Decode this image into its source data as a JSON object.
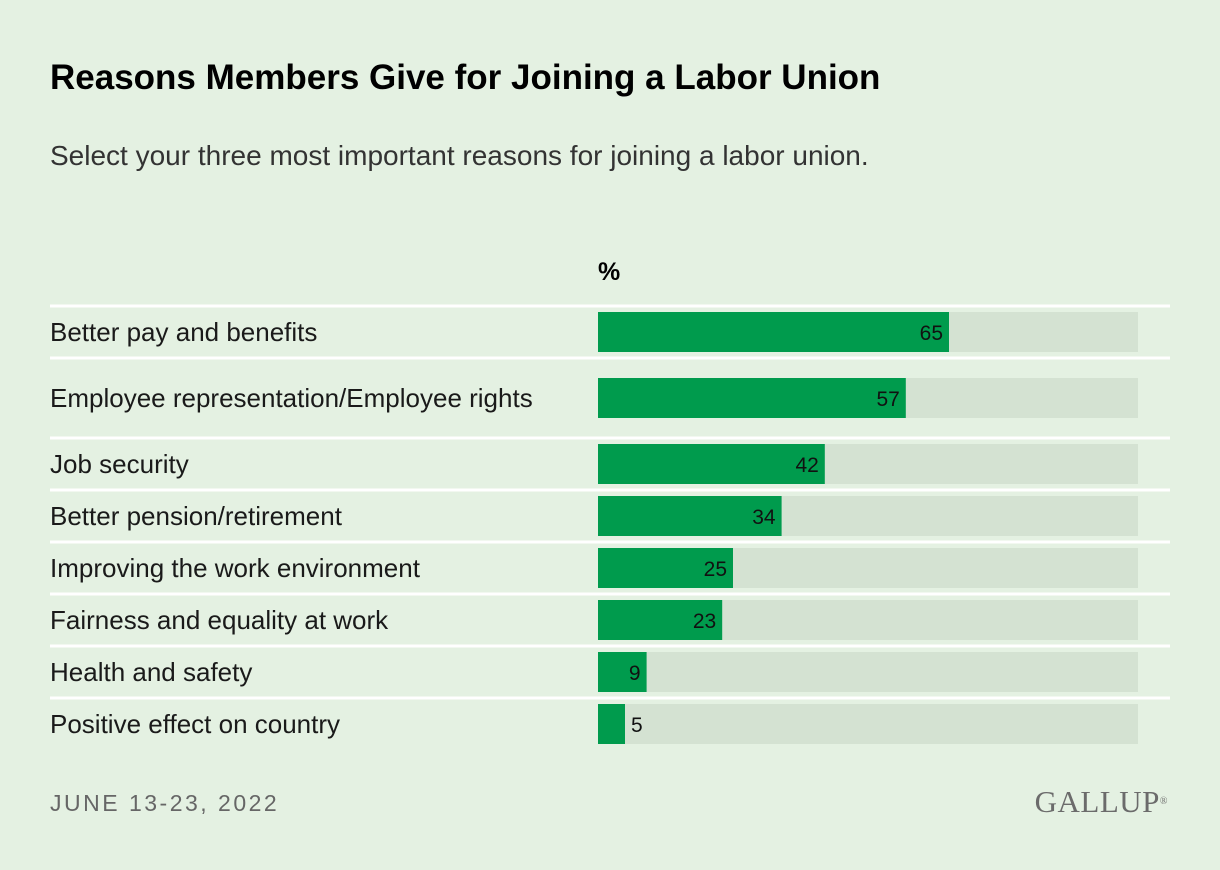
{
  "chart_data": {
    "type": "bar",
    "orientation": "horizontal",
    "title": "Reasons Members Give for Joining a Labor Union",
    "subtitle": "Select your three most important reasons for joining a labor union.",
    "unit_label": "%",
    "categories": [
      "Better pay and benefits",
      "Employee representation/Employee rights",
      "Job security",
      "Better pension/retirement",
      "Improving the work environment",
      "Fairness and equality at work",
      "Health and safety",
      "Positive effect on country"
    ],
    "values": [
      65,
      57,
      42,
      34,
      25,
      23,
      9,
      5
    ],
    "xlim": [
      0,
      100
    ],
    "grid": false,
    "colors": {
      "bar": "#009b4d",
      "track": "#d4e2d2",
      "separator": "#ffffff",
      "label": "#1a1a1a"
    }
  },
  "footer": {
    "date": "JUNE 13-23, 2022",
    "brand": "GALLUP"
  }
}
